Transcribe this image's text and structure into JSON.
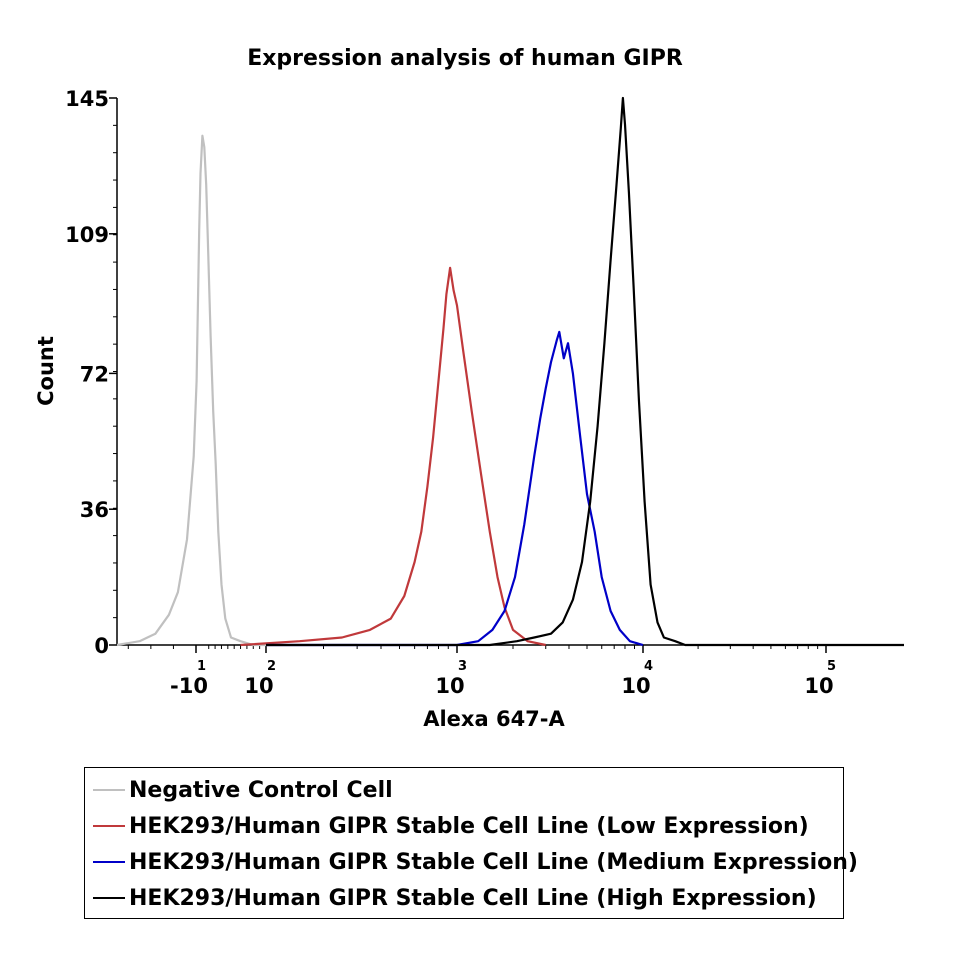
{
  "chart_data": {
    "type": "line",
    "title": "Expression analysis of human GIPR",
    "xlabel": "Alexa 647-A",
    "ylabel": "Count",
    "x_scale": "biexponential",
    "ylim": [
      0,
      145
    ],
    "y_ticks": [
      {
        "value": 0,
        "label": "0"
      },
      {
        "value": 36,
        "label": "36"
      },
      {
        "value": 72,
        "label": "72"
      },
      {
        "value": 109,
        "label": "109"
      },
      {
        "value": 145,
        "label": "145"
      }
    ],
    "x_ticks": [
      {
        "value": -10,
        "base": "-10",
        "exp": "1"
      },
      {
        "value": 100,
        "base": "10",
        "exp": "2"
      },
      {
        "value": 1000,
        "base": "10",
        "exp": "3"
      },
      {
        "value": 10000,
        "base": "10",
        "exp": "4"
      },
      {
        "value": 100000,
        "base": "10",
        "exp": "5"
      }
    ],
    "legend_position": "bottom",
    "series": [
      {
        "name": "Negative Control Cell",
        "color": "#c0c0c0",
        "points": [
          [
            -45,
            0
          ],
          [
            -35,
            1
          ],
          [
            -28,
            3
          ],
          [
            -22,
            8
          ],
          [
            -18,
            14
          ],
          [
            -14,
            28
          ],
          [
            -11,
            50
          ],
          [
            -9,
            70
          ],
          [
            -7,
            90
          ],
          [
            -5,
            110
          ],
          [
            -3,
            125
          ],
          [
            0,
            135
          ],
          [
            3,
            132
          ],
          [
            6,
            122
          ],
          [
            9,
            105
          ],
          [
            13,
            82
          ],
          [
            17,
            62
          ],
          [
            21,
            48
          ],
          [
            25,
            30
          ],
          [
            30,
            16
          ],
          [
            36,
            7
          ],
          [
            45,
            2
          ],
          [
            60,
            1
          ],
          [
            80,
            0
          ],
          [
            300,
            0
          ]
        ]
      },
      {
        "name": "HEK293/Human GIPR Stable Cell Line (Low Expression)",
        "color": "#c0393b",
        "points": [
          [
            60,
            0
          ],
          [
            150,
            1
          ],
          [
            250,
            2
          ],
          [
            350,
            4
          ],
          [
            450,
            7
          ],
          [
            530,
            13
          ],
          [
            600,
            22
          ],
          [
            650,
            30
          ],
          [
            700,
            42
          ],
          [
            750,
            55
          ],
          [
            800,
            70
          ],
          [
            850,
            84
          ],
          [
            880,
            93
          ],
          [
            920,
            100
          ],
          [
            960,
            94
          ],
          [
            1000,
            90
          ],
          [
            1080,
            78
          ],
          [
            1200,
            62
          ],
          [
            1350,
            45
          ],
          [
            1500,
            30
          ],
          [
            1650,
            18
          ],
          [
            1800,
            10
          ],
          [
            2000,
            4
          ],
          [
            2400,
            1
          ],
          [
            3000,
            0
          ]
        ]
      },
      {
        "name": "HEK293/Human GIPR Stable Cell Line (Medium Expression)",
        "color": "#0000c8",
        "points": [
          [
            100,
            0
          ],
          [
            1000,
            0
          ],
          [
            1300,
            1
          ],
          [
            1550,
            4
          ],
          [
            1800,
            9
          ],
          [
            2050,
            18
          ],
          [
            2300,
            32
          ],
          [
            2600,
            50
          ],
          [
            2800,
            60
          ],
          [
            3000,
            68
          ],
          [
            3200,
            75
          ],
          [
            3450,
            81
          ],
          [
            3550,
            83
          ],
          [
            3750,
            76
          ],
          [
            3950,
            80
          ],
          [
            4200,
            72
          ],
          [
            4600,
            55
          ],
          [
            5000,
            40
          ],
          [
            5500,
            30
          ],
          [
            6000,
            18
          ],
          [
            6700,
            9
          ],
          [
            7500,
            4
          ],
          [
            8500,
            1
          ],
          [
            10000,
            0
          ]
        ]
      },
      {
        "name": "HEK293/Human GIPR Stable Cell Line (High Expression)",
        "color": "#000000",
        "points": [
          [
            100,
            0
          ],
          [
            1500,
            0
          ],
          [
            2100,
            1
          ],
          [
            2600,
            2
          ],
          [
            3200,
            3
          ],
          [
            3700,
            6
          ],
          [
            4200,
            12
          ],
          [
            4700,
            22
          ],
          [
            5200,
            38
          ],
          [
            5700,
            58
          ],
          [
            6200,
            80
          ],
          [
            6700,
            102
          ],
          [
            7200,
            122
          ],
          [
            7600,
            137
          ],
          [
            7800,
            145
          ],
          [
            8000,
            138
          ],
          [
            8400,
            120
          ],
          [
            8900,
            95
          ],
          [
            9500,
            65
          ],
          [
            10200,
            38
          ],
          [
            11000,
            16
          ],
          [
            12000,
            6
          ],
          [
            13000,
            2
          ],
          [
            15000,
            1
          ],
          [
            17000,
            0
          ],
          [
            100000,
            0
          ],
          [
            300000,
            0
          ]
        ]
      }
    ]
  }
}
